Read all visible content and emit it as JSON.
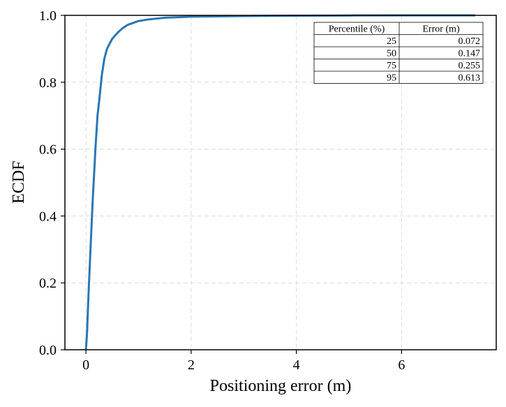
{
  "chart_data": {
    "type": "line",
    "title": "",
    "xlabel": "Positioning error (m)",
    "ylabel": "ECDF",
    "xlim": [
      -0.4,
      7.8
    ],
    "ylim": [
      0,
      1
    ],
    "xticks": [
      0,
      2,
      4,
      6
    ],
    "xtick_labels": [
      "0",
      "2",
      "4",
      "6"
    ],
    "yticks": [
      0,
      0.2,
      0.4,
      0.6,
      0.8,
      1.0
    ],
    "ytick_labels": [
      "0.0",
      "0.2",
      "0.4",
      "0.6",
      "0.8",
      "1.0"
    ],
    "grid": true,
    "line_color": "#2a77b4",
    "series": [
      {
        "x": [
          0,
          0.02,
          0.05,
          0.072,
          0.1,
          0.13,
          0.147,
          0.18,
          0.22,
          0.255,
          0.3,
          0.35,
          0.4,
          0.5,
          0.613,
          0.7,
          0.8,
          1.0,
          1.2,
          1.5,
          2.0,
          3.0,
          4.0,
          5.0,
          6.0,
          7.4
        ],
        "y": [
          0,
          0.05,
          0.17,
          0.25,
          0.35,
          0.45,
          0.5,
          0.6,
          0.7,
          0.75,
          0.82,
          0.87,
          0.9,
          0.93,
          0.95,
          0.962,
          0.972,
          0.983,
          0.988,
          0.993,
          0.996,
          0.998,
          0.999,
          0.9995,
          1.0,
          1.0
        ]
      }
    ],
    "table": {
      "headers": [
        "Percentile (%)",
        "Error (m)"
      ],
      "rows": [
        [
          "25",
          "0.072"
        ],
        [
          "50",
          "0.147"
        ],
        [
          "75",
          "0.255"
        ],
        [
          "95",
          "0.613"
        ]
      ],
      "placement": "top-right"
    }
  }
}
